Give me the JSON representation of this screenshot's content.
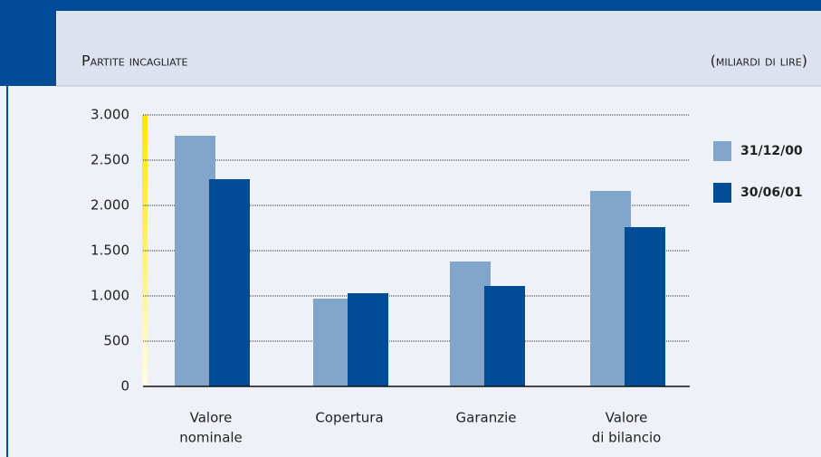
{
  "chart_data": {
    "type": "bar",
    "title": "Partite incagliate",
    "subtitle": "(miliardi di lire)",
    "categories": [
      [
        "Valore",
        "nominale"
      ],
      [
        "Copertura"
      ],
      [
        "Garanzie"
      ],
      [
        "Valore",
        "di bilancio"
      ]
    ],
    "series": [
      {
        "name": "31/12/00",
        "color": "#82a5cc",
        "values": [
          2770,
          970,
          1380,
          2160
        ]
      },
      {
        "name": "30/06/01",
        "color": "#004c97",
        "values": [
          2290,
          1030,
          1110,
          1760
        ]
      }
    ],
    "ylim": [
      0,
      3000
    ],
    "yticks": [
      0,
      500,
      {
        "value": 1000,
        "label": "1.000"
      },
      {
        "value": 1500,
        "label": "1.500"
      },
      {
        "value": 2000,
        "label": "2.000"
      },
      {
        "value": 2500,
        "label": "2.500"
      },
      {
        "value": 3000,
        "label": "3.000"
      }
    ],
    "grid": true
  }
}
